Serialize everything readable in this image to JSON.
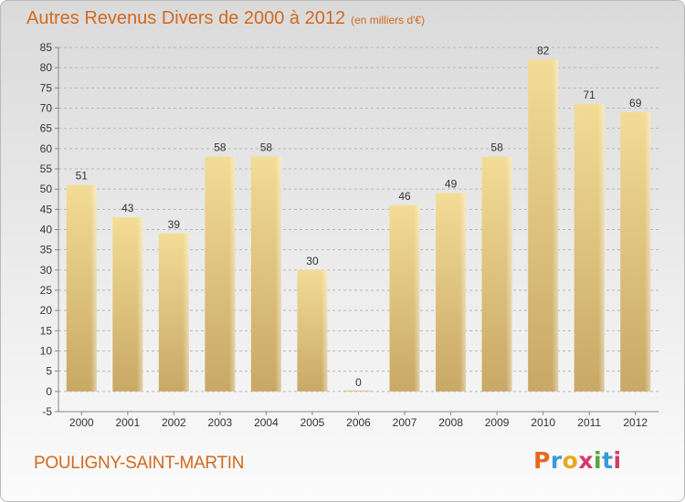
{
  "header": {
    "title": "Autres Revenus Divers de 2000 à 2012",
    "subtitle": "(en milliers d'€)"
  },
  "footer": {
    "city": "POULIGNY-SAINT-MARTIN",
    "brand": "Proxiti"
  },
  "colors": {
    "accent": "#d2691e",
    "bar_light": "#f3dc95",
    "bar_dark": "#c8a865"
  },
  "chart_data": {
    "type": "bar",
    "title": "Autres Revenus Divers de 2000 à 2012",
    "subtitle": "(en milliers d'€)",
    "categories": [
      "2000",
      "2001",
      "2002",
      "2003",
      "2004",
      "2005",
      "2006",
      "2007",
      "2008",
      "2009",
      "2010",
      "2011",
      "2012"
    ],
    "values": [
      51,
      43,
      39,
      58,
      58,
      30,
      0,
      46,
      49,
      58,
      82,
      71,
      69
    ],
    "ylim": [
      -5,
      85
    ],
    "yticks": [
      -5,
      0,
      5,
      10,
      15,
      20,
      25,
      30,
      35,
      40,
      45,
      50,
      55,
      60,
      65,
      70,
      75,
      80,
      85
    ],
    "grid": "horizontal dashed",
    "data_labels": true
  }
}
